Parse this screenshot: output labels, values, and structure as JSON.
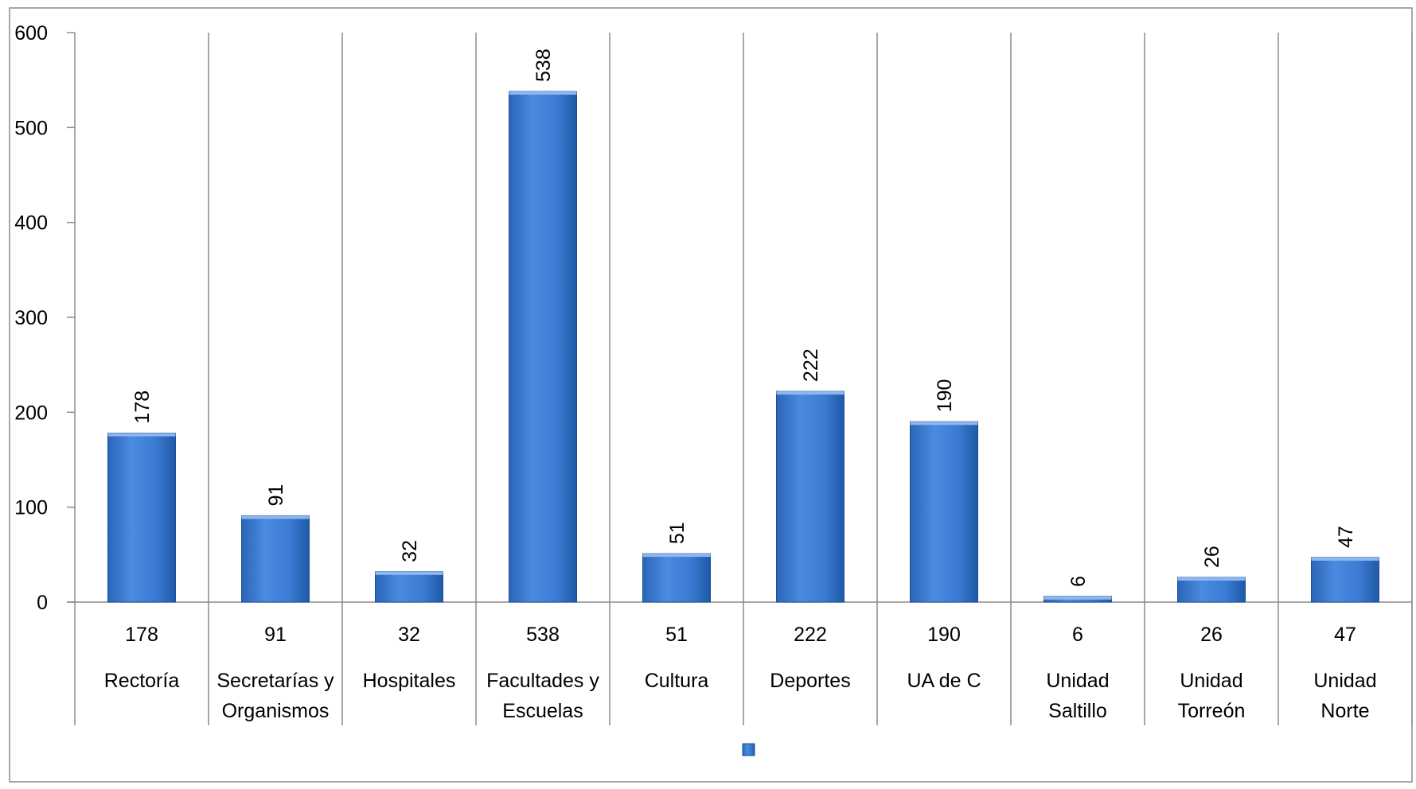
{
  "chart_data": {
    "type": "bar",
    "categories": [
      [
        "Rectoría"
      ],
      [
        "Secretarías y",
        "Organismos"
      ],
      [
        "Hospitales"
      ],
      [
        "Facultades y",
        "Escuelas"
      ],
      [
        "Cultura"
      ],
      [
        "Deportes"
      ],
      [
        "UA de C"
      ],
      [
        "Unidad",
        "Saltillo"
      ],
      [
        "Unidad",
        "Torreón"
      ],
      [
        "Unidad",
        "Norte"
      ]
    ],
    "series": [
      {
        "values": [
          178,
          91,
          32,
          538,
          51,
          222,
          190,
          6,
          26,
          47
        ]
      }
    ],
    "data_table_values": [
      "178",
      "91",
      "32",
      "538",
      "51",
      "222",
      "190",
      "6",
      "26",
      "47"
    ],
    "title": "",
    "xlabel": "",
    "ylabel": "",
    "ylim": [
      0,
      600
    ],
    "yticks": [
      "0",
      "100",
      "200",
      "300",
      "400",
      "500",
      "600"
    ],
    "grid": "vertical category separators",
    "data_labels": "rotated above bars",
    "legend": "bottom-center",
    "colors": {
      "bar": "#3a7bd5",
      "bar_dark": "#1f5fae",
      "axis": "#8c8c8c"
    }
  }
}
